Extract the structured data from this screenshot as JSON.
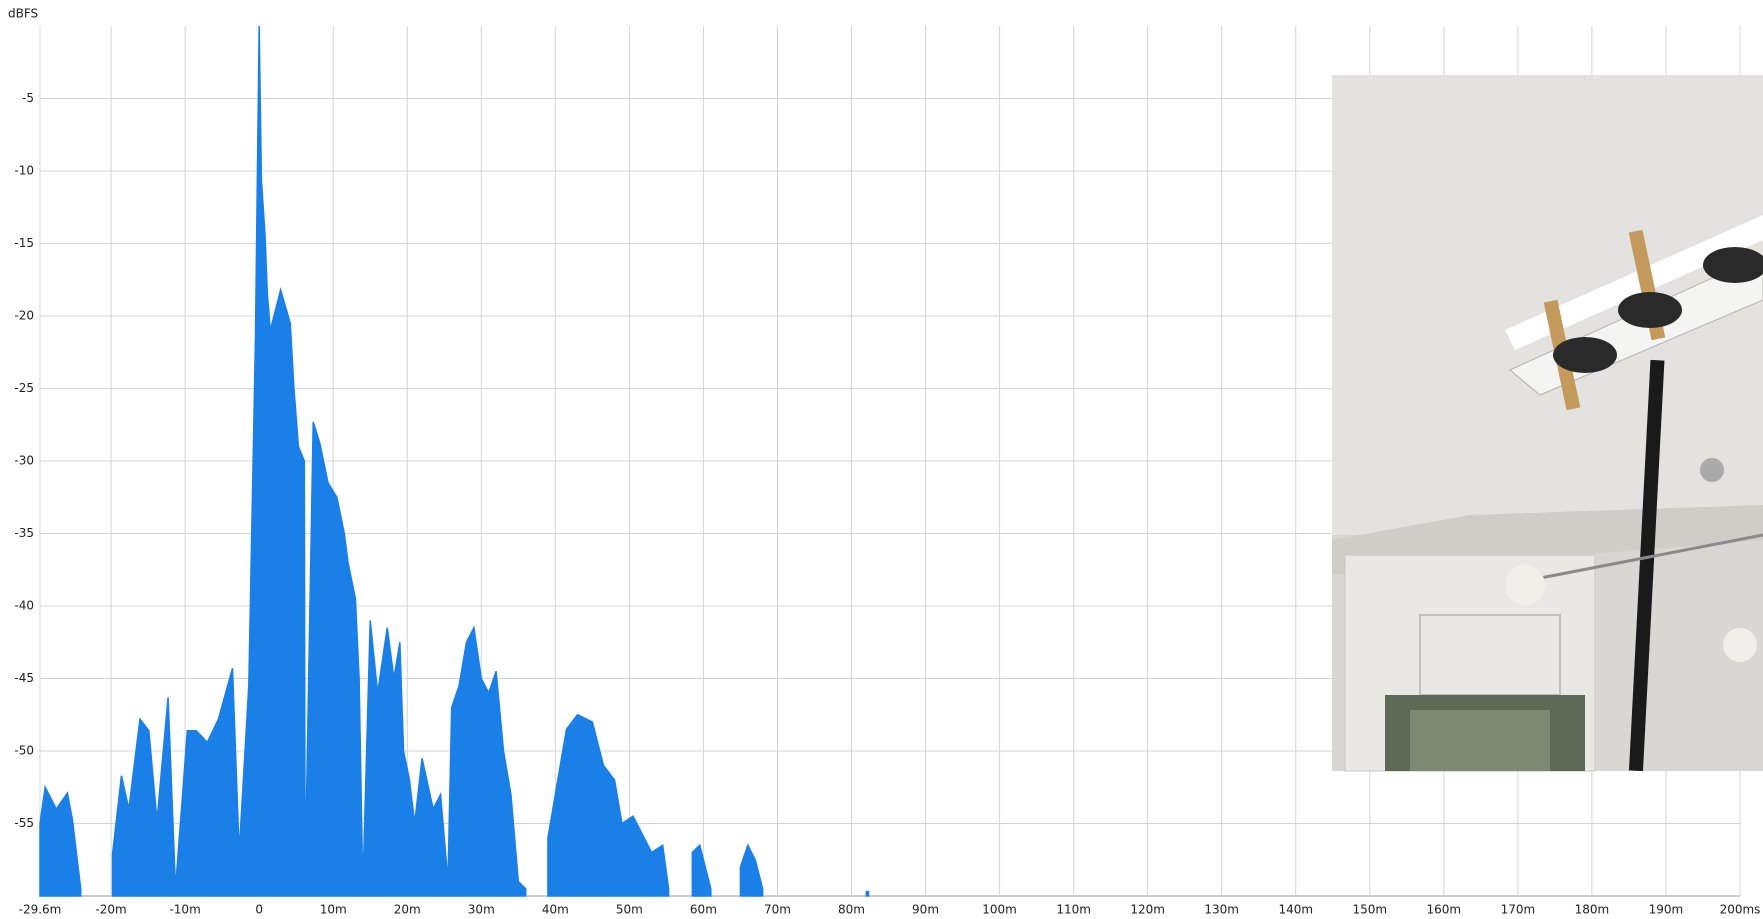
{
  "chart_data": {
    "type": "area",
    "y_label": "dBFS",
    "xlim": [
      -29.6,
      200
    ],
    "ylim": [
      -60,
      0
    ],
    "xticks": [
      {
        "value": -29.6,
        "label": "-29.6m"
      },
      {
        "value": -20,
        "label": "-20m"
      },
      {
        "value": -10,
        "label": "-10m"
      },
      0,
      {
        "value": 10,
        "label": "10m"
      },
      {
        "value": 20,
        "label": "20m"
      },
      {
        "value": 30,
        "label": "30m"
      },
      {
        "value": 40,
        "label": "40m"
      },
      {
        "value": 50,
        "label": "50m"
      },
      {
        "value": 60,
        "label": "60m"
      },
      {
        "value": 70,
        "label": "70m"
      },
      {
        "value": 80,
        "label": "80m"
      },
      {
        "value": 90,
        "label": "90m"
      },
      {
        "value": 100,
        "label": "100m"
      },
      {
        "value": 110,
        "label": "110m"
      },
      {
        "value": 120,
        "label": "120m"
      },
      {
        "value": 130,
        "label": "130m"
      },
      {
        "value": 140,
        "label": "140m"
      },
      {
        "value": 150,
        "label": "150m"
      },
      {
        "value": 160,
        "label": "160m"
      },
      {
        "value": 170,
        "label": "170m"
      },
      {
        "value": 180,
        "label": "180m"
      },
      {
        "value": 190,
        "label": "190m"
      },
      {
        "value": 200,
        "label": "200ms"
      }
    ],
    "yticks": [
      -55,
      -50,
      -45,
      -40,
      -35,
      -30,
      -25,
      -20,
      -15,
      -10,
      -5
    ],
    "grid": true,
    "series": [
      {
        "color": "#1a7fe6",
        "x": [
          -29.6,
          -28.9,
          -27.4,
          -25.9,
          -25.2,
          -24.1,
          null,
          -19.8,
          -18.6,
          -17.6,
          -16.1,
          -14.9,
          -13.8,
          -12.3,
          -11.3,
          -9.7,
          -8.5,
          -7.0,
          -5.5,
          -3.6,
          -2.7,
          -1.4,
          -0.5,
          0,
          0.3,
          0.8,
          1.1,
          1.5,
          2.9,
          4.2,
          4.7,
          5.3,
          6.1,
          6.2,
          7.3,
          8.2,
          9.3,
          10.5,
          11.5,
          12,
          13,
          13.5,
          14,
          15,
          16,
          17.3,
          18.2,
          19,
          19.5,
          20.3,
          21,
          22,
          23.5,
          24.5,
          25.5,
          26,
          27,
          28,
          29,
          30,
          31,
          32,
          33,
          34,
          35,
          36,
          null,
          39,
          40,
          41.5,
          43,
          45,
          46.5,
          48,
          49,
          50.5,
          52,
          53,
          54.5,
          55.3,
          null,
          58.5,
          59.5,
          61,
          null,
          65,
          66,
          67,
          68,
          null,
          82,
          82.3
        ],
        "values": [
          -55,
          -52.5,
          -54,
          -52.9,
          -54.8,
          -59.5,
          null,
          -57.1,
          -51.7,
          -54,
          -47.8,
          -48.6,
          -54.8,
          -46.3,
          -59.5,
          -48.6,
          -48.6,
          -49.4,
          -47.8,
          -44.3,
          -57,
          -45.5,
          -21.5,
          0,
          -10.6,
          -14.5,
          -18.4,
          -21,
          -18.2,
          -20.5,
          -25,
          -29,
          -30,
          -59,
          -27.3,
          -28.8,
          -31.5,
          -32.5,
          -35,
          -37,
          -39.5,
          -45,
          -59.5,
          -41,
          -46,
          -41.5,
          -45,
          -42.5,
          -50,
          -52,
          -55,
          -50.5,
          -54,
          -53,
          -59,
          -47,
          -45.5,
          -42.5,
          -41.5,
          -45,
          -46,
          -44.5,
          -50,
          -53,
          -59,
          -59.5,
          null,
          -56,
          -53,
          -48.5,
          -47.5,
          -48,
          -51,
          -52,
          -55,
          -54.5,
          -56,
          -57,
          -56.5,
          -59.5,
          null,
          -57,
          -56.5,
          -59.5,
          null,
          -58,
          -56.5,
          -57.5,
          -59.5,
          null,
          -59.7,
          -59.7
        ]
      }
    ]
  }
}
